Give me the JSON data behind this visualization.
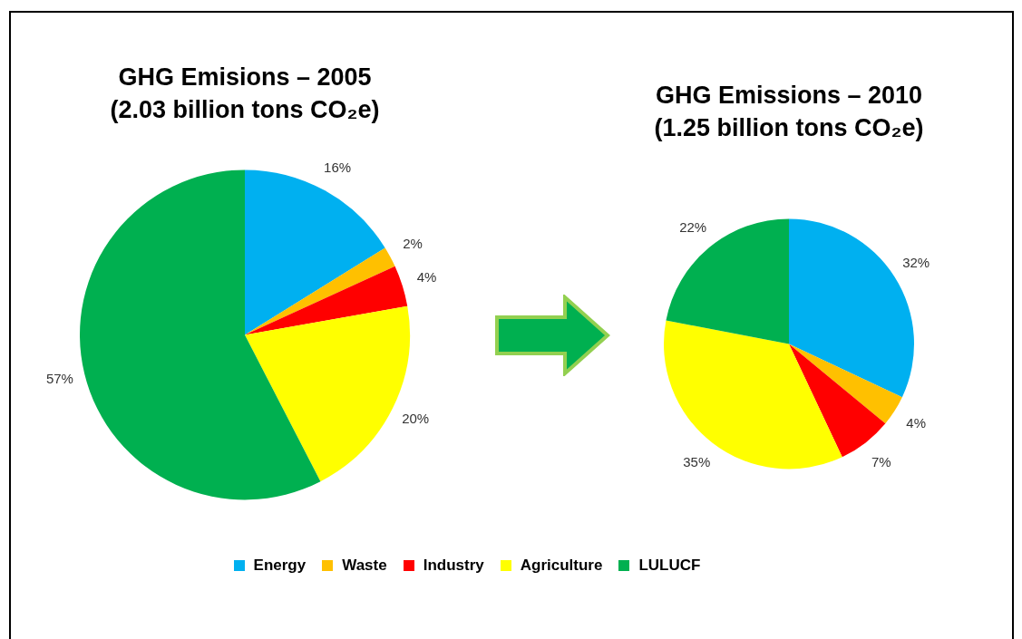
{
  "chart_data": [
    {
      "type": "pie",
      "title": "GHG Emisions – 2005",
      "subtitle": "(2.03 billion tons CO₂e)",
      "categories": [
        "Energy",
        "Waste",
        "Industry",
        "Agriculture",
        "LULUCF"
      ],
      "values": [
        16,
        2,
        4,
        20,
        57
      ],
      "value_labels": [
        "16%",
        "2%",
        "4%",
        "20%",
        "57%"
      ],
      "colors": [
        "#00b0f0",
        "#ffc000",
        "#ff0000",
        "#ffff00",
        "#00b050"
      ],
      "legend": "bottom"
    },
    {
      "type": "pie",
      "title": "GHG Emissions – 2010",
      "subtitle": "(1.25 billion tons CO₂e)",
      "categories": [
        null,
        null,
        null,
        null,
        null
      ],
      "values": [
        32,
        4,
        7,
        35,
        22
      ],
      "value_labels": [
        "32%",
        "4%",
        "7%",
        "35%",
        "22%"
      ],
      "colors": [
        "#00b0f0",
        "#ffc000",
        "#ff0000",
        "#ffff00",
        "#00b050"
      ]
    }
  ]
}
